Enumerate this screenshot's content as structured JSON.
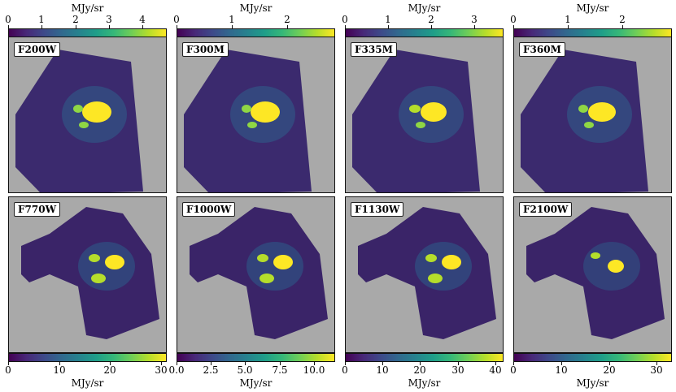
{
  "unit_label": "MJy/sr",
  "top_row": [
    {
      "filter": "F200W",
      "ticks": [
        "0",
        "1",
        "2",
        "3",
        "4"
      ],
      "tick_values": [
        0,
        1,
        2,
        3,
        4
      ],
      "vmax": 4.7
    },
    {
      "filter": "F300M",
      "ticks": [
        "0",
        "1",
        "2"
      ],
      "tick_values": [
        0,
        1,
        2
      ],
      "vmax": 2.85
    },
    {
      "filter": "F335M",
      "ticks": [
        "0",
        "1",
        "2",
        "3"
      ],
      "tick_values": [
        0,
        1,
        2,
        3
      ],
      "vmax": 3.65
    },
    {
      "filter": "F360M",
      "ticks": [
        "0",
        "1",
        "2"
      ],
      "tick_values": [
        0,
        1,
        2
      ],
      "vmax": 2.9
    }
  ],
  "bottom_row": [
    {
      "filter": "F770W",
      "ticks": [
        "0",
        "10",
        "20",
        "30"
      ],
      "tick_values": [
        0,
        10,
        20,
        30
      ],
      "vmax": 31
    },
    {
      "filter": "F1000W",
      "ticks": [
        "0.0",
        "2.5",
        "5.0",
        "7.5",
        "10.0"
      ],
      "tick_values": [
        0,
        2.5,
        5,
        7.5,
        10
      ],
      "vmax": 11.5
    },
    {
      "filter": "F1130W",
      "ticks": [
        "0",
        "10",
        "20",
        "30",
        "40"
      ],
      "tick_values": [
        0,
        10,
        20,
        30,
        40
      ],
      "vmax": 42
    },
    {
      "filter": "F2100W",
      "ticks": [
        "0",
        "10",
        "20",
        "30"
      ],
      "tick_values": [
        0,
        10,
        20,
        30
      ],
      "vmax": 33
    }
  ],
  "colormap": [
    "#440154",
    "#482878",
    "#3e4989",
    "#31688e",
    "#26828e",
    "#1f9e89",
    "#35b779",
    "#6ece58",
    "#b5de2b",
    "#fde725"
  ]
}
